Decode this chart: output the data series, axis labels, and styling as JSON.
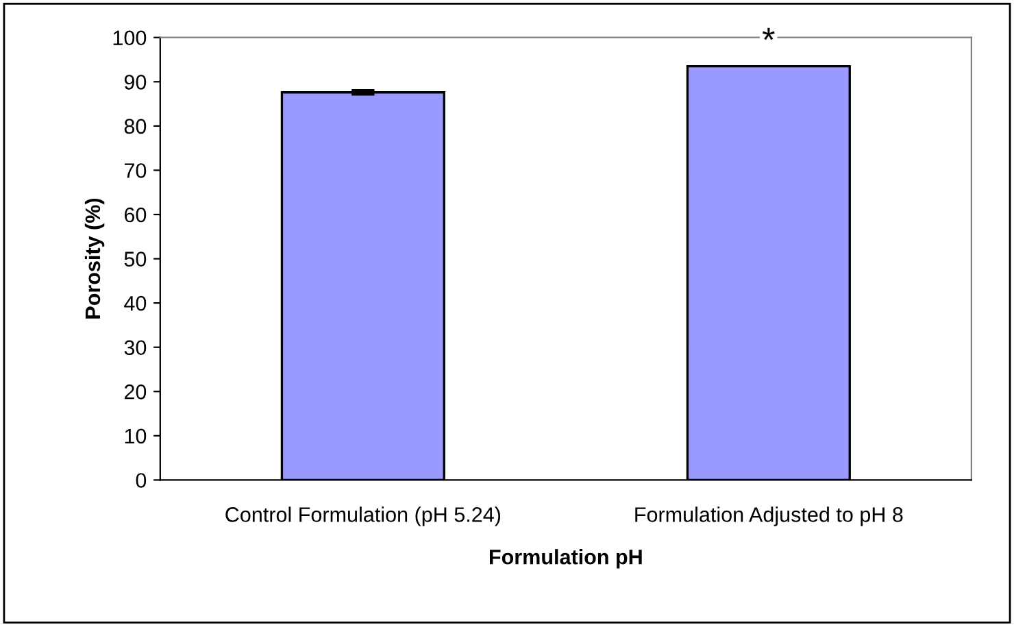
{
  "chart_data": {
    "type": "bar",
    "xlabel": "Formulation pH",
    "ylabel": "Porosity (%)",
    "categories": [
      "Control Formulation (pH 5.24)",
      "Formulation Adjusted to pH 8"
    ],
    "values": [
      87.6,
      93.5
    ],
    "errors": [
      0.3,
      null
    ],
    "color": "#9999ff",
    "ylim": [
      0,
      100
    ],
    "yticks": [
      0,
      10,
      20,
      30,
      40,
      50,
      60,
      70,
      80,
      90,
      100
    ],
    "grid": false,
    "annotations": [
      {
        "text": "*",
        "x": "Formulation Adjusted to pH 8",
        "y": 93.5
      }
    ]
  }
}
